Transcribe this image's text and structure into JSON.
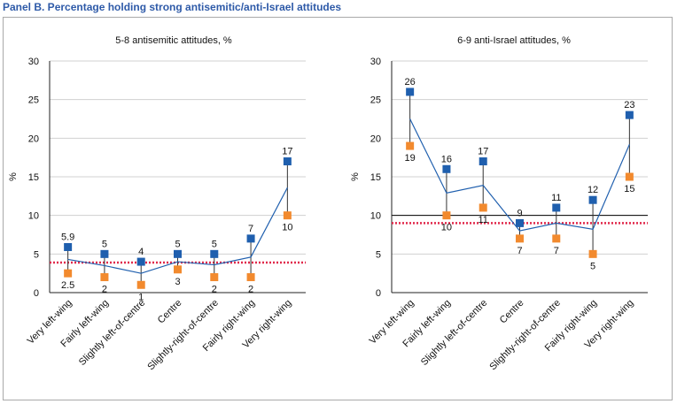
{
  "panel_title": "Panel B. Percentage holding strong antisemitic/anti-Israel attitudes",
  "colors": {
    "series_a": "#1f5fae",
    "series_b": "#f28a2e",
    "reference": "#e0294b",
    "grid": "#d0d0d0",
    "axis": "#222222"
  },
  "chart_data": [
    {
      "type": "line",
      "title": "5-8 antisemitic attitudes, %",
      "xlabel": "",
      "ylabel": "%",
      "ylim": [
        0,
        30
      ],
      "yticks": [
        "0",
        "5",
        "10",
        "15",
        "20",
        "25",
        "30"
      ],
      "categories": [
        "Very left-wing",
        "Fairly left-wing",
        "Slightly left-of-centre",
        "Centre",
        "Slightly-right-of-centre",
        "Fairly right-wing",
        "Very right-wing"
      ],
      "series": [
        {
          "name": "blue markers",
          "values": [
            5.9,
            5,
            4,
            5,
            5,
            7,
            17
          ],
          "labels": [
            "5.9",
            "5",
            "4",
            "5",
            "5",
            "7",
            "17"
          ]
        },
        {
          "name": "orange markers",
          "values": [
            2.5,
            2,
            1,
            3,
            2,
            2,
            10
          ],
          "labels": [
            "2.5",
            "2",
            "1",
            "3",
            "2",
            "2",
            "10"
          ]
        },
        {
          "name": "average line",
          "values": [
            4.3,
            3.5,
            2.5,
            4,
            3.6,
            4.6,
            13.6
          ]
        }
      ],
      "reference_line": 3.9,
      "grid": true
    },
    {
      "type": "line",
      "title": "6-9 anti-Israel attitudes, %",
      "xlabel": "",
      "ylabel": "%",
      "ylim": [
        0,
        30
      ],
      "yticks": [
        "0",
        "5",
        "10",
        "15",
        "20",
        "25",
        "30"
      ],
      "categories": [
        "Very left-wing",
        "Fairly left-wing",
        "Slightly left-of-centre",
        "Centre",
        "Slightly-right-of-centre",
        "Fairly right-wing",
        "Very right-wing"
      ],
      "series": [
        {
          "name": "blue markers",
          "values": [
            26,
            16,
            17,
            9,
            11,
            12,
            23
          ],
          "labels": [
            "26",
            "16",
            "17",
            "9",
            "11",
            "12",
            "23"
          ]
        },
        {
          "name": "orange markers",
          "values": [
            19,
            10,
            11,
            7,
            7,
            5,
            15
          ],
          "labels": [
            "19",
            "10",
            "11",
            "7",
            "7",
            "5",
            "15"
          ]
        },
        {
          "name": "average line",
          "values": [
            22.5,
            12.9,
            13.9,
            8,
            9,
            8.2,
            19.2
          ]
        }
      ],
      "reference_line": 9,
      "highlight_line": 10,
      "grid": true
    }
  ]
}
